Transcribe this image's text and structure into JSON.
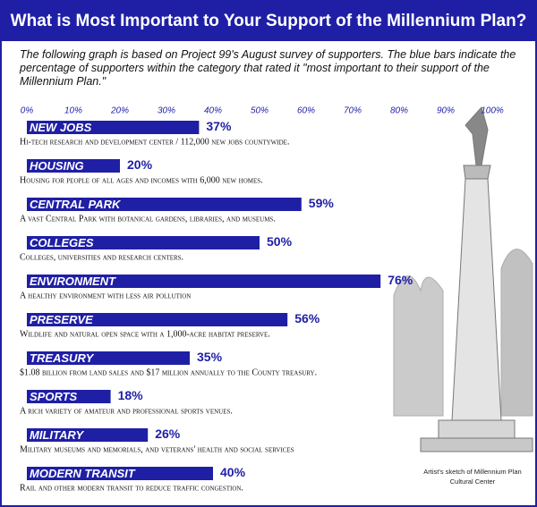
{
  "chart_data": {
    "type": "hbar",
    "title": "What is Most Important to Your Support of the Millennium Plan?",
    "subtitle": "The following graph is based on Project 99's August survey of supporters.  The blue bars indicate the percentage of supporters within the category that rated it \"most important to their support of the Millennium Plan.\"",
    "categories": [
      "NEW JOBS",
      "HOUSING",
      "CENTRAL PARK",
      "COLLEGES",
      "ENVIRONMENT",
      "PRESERVE",
      "TREASURY",
      "SPORTS",
      "MILITARY",
      "MODERN TRANSIT"
    ],
    "values": [
      37,
      20,
      59,
      50,
      76,
      56,
      35,
      18,
      26,
      40
    ],
    "value_labels": [
      "37%",
      "20%",
      "59%",
      "50%",
      "76%",
      "56%",
      "35%",
      "18%",
      "26%",
      "40%"
    ],
    "descriptions": [
      "Hi-tech research and development center / 112,000 new jobs countywide.",
      "Housing for people of all ages and incomes with 6,000 new homes.",
      "A vast Central Park with botanical gardens, libraries, and museums.",
      "Colleges, universities and research centers.",
      "A healthy environment with less air pollution",
      "Wildlife and natural open space with a 1,000-acre habitat preserve.",
      "$1.08 billion from land sales and $17 million annually to the County treasury.",
      "A rich variety of amateur and professional sports venues.",
      "Military museums and memorials, and veterans' health and social services",
      "Rail and other modern transit to reduce traffic congestion."
    ],
    "color": "#1f1fa6",
    "xlim": [
      0,
      100
    ],
    "xticks": [
      {
        "value": 0,
        "label": "0%"
      },
      {
        "value": 10,
        "label": "10%"
      },
      {
        "value": 20,
        "label": "20%"
      },
      {
        "value": 30,
        "label": "30%"
      },
      {
        "value": 40,
        "label": "40%"
      },
      {
        "value": 50,
        "label": "50%"
      },
      {
        "value": 60,
        "label": "60%"
      },
      {
        "value": 70,
        "label": "70%"
      },
      {
        "value": 80,
        "label": "80%"
      },
      {
        "value": 90,
        "label": "90%"
      },
      {
        "value": 100,
        "label": "100%"
      }
    ],
    "caption": "Artist's sketch of Millennium Plan Cultural Center"
  }
}
